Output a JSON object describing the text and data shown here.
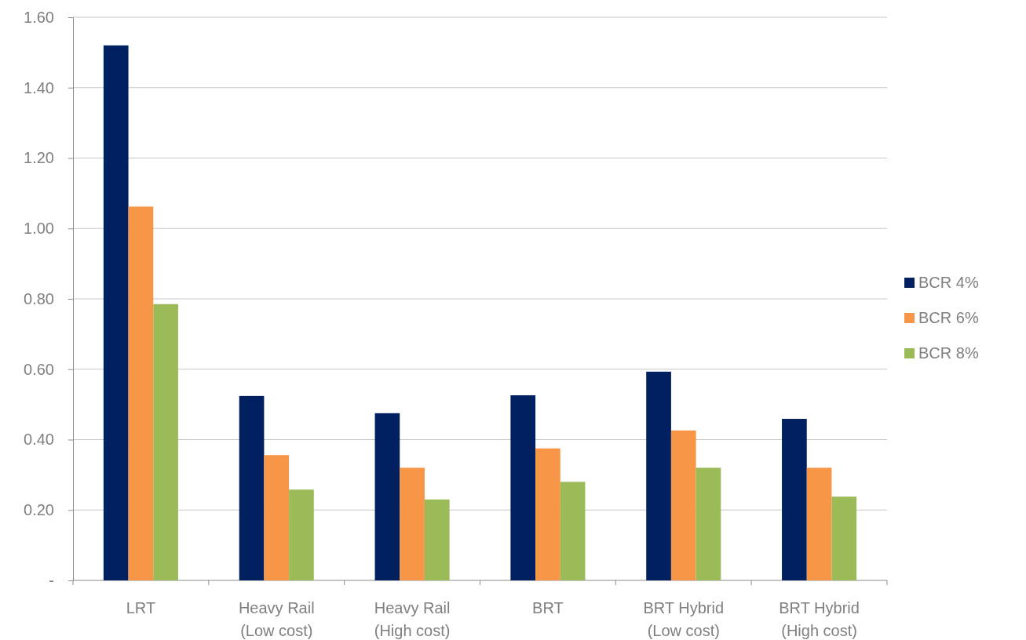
{
  "chart_data": {
    "type": "bar",
    "categories": [
      "LRT",
      "Heavy Rail\n(Low cost)",
      "Heavy Rail\n(High cost)",
      "BRT",
      "BRT Hybrid\n(Low cost)",
      "BRT Hybrid\n(High cost)"
    ],
    "series": [
      {
        "name": "BCR 4%",
        "color": "#002060",
        "values": [
          1.52,
          0.524,
          0.475,
          0.526,
          0.593,
          0.459
        ]
      },
      {
        "name": "BCR 6%",
        "color": "#f79646",
        "values": [
          1.062,
          0.356,
          0.32,
          0.375,
          0.426,
          0.32
        ]
      },
      {
        "name": "BCR 8%",
        "color": "#9bbb59",
        "values": [
          0.785,
          0.258,
          0.23,
          0.28,
          0.32,
          0.238
        ]
      }
    ],
    "ylim": [
      0,
      1.6
    ],
    "yticks": [
      {
        "value": 0,
        "label": "-"
      },
      {
        "value": 0.2,
        "label": "0.20"
      },
      {
        "value": 0.4,
        "label": "0.40"
      },
      {
        "value": 0.6,
        "label": "0.60"
      },
      {
        "value": 0.8,
        "label": "0.80"
      },
      {
        "value": 1,
        "label": "1.00"
      },
      {
        "value": 1.2,
        "label": "1.20"
      },
      {
        "value": 1.4,
        "label": "1.40"
      },
      {
        "value": 1.6,
        "label": "1.60"
      }
    ],
    "grid": "y",
    "legend": "right"
  }
}
